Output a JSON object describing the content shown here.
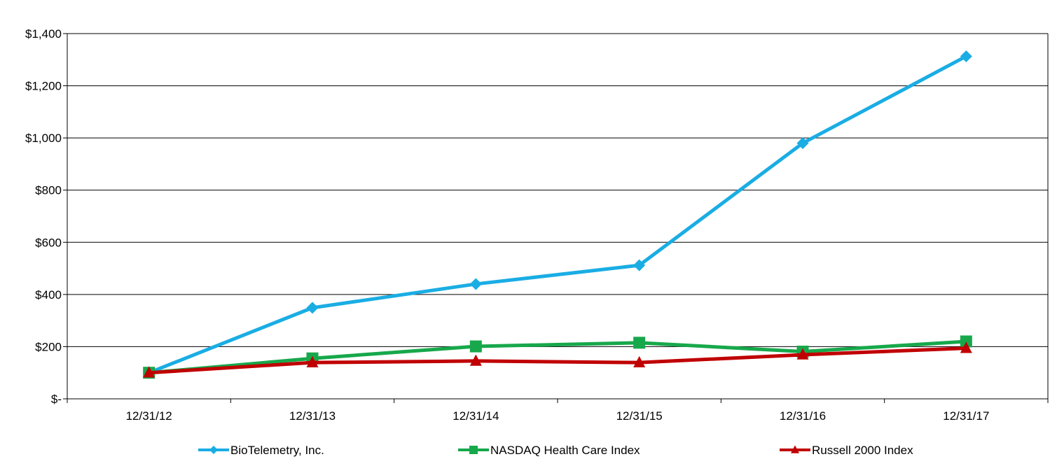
{
  "chart_data": {
    "type": "line",
    "title": "",
    "xlabel": "",
    "ylabel": "",
    "categories": [
      "12/31/12",
      "12/31/13",
      "12/31/14",
      "12/31/15",
      "12/31/16",
      "12/31/17"
    ],
    "ylim": [
      0,
      1400
    ],
    "y_ticks": [
      0,
      200,
      400,
      600,
      800,
      1000,
      1200,
      1400
    ],
    "y_tick_labels": [
      "$-",
      "$200",
      "$400",
      "$600",
      "$800",
      "$1,000",
      "$1,200",
      "$1,400"
    ],
    "grid": true,
    "legend_position": "bottom",
    "series": [
      {
        "name": "BioTelemetry, Inc.",
        "color": "#1aade4",
        "marker": "diamond",
        "values": [
          100,
          349,
          440,
          512,
          980,
          1313
        ]
      },
      {
        "name": "NASDAQ Health Care Index",
        "color": "#17a84b",
        "marker": "square",
        "values": [
          100,
          155,
          201,
          215,
          181,
          220
        ]
      },
      {
        "name": "Russell 2000 Index",
        "color": "#c00000",
        "marker": "triangle",
        "values": [
          100,
          139,
          145,
          139,
          169,
          194
        ]
      }
    ]
  }
}
